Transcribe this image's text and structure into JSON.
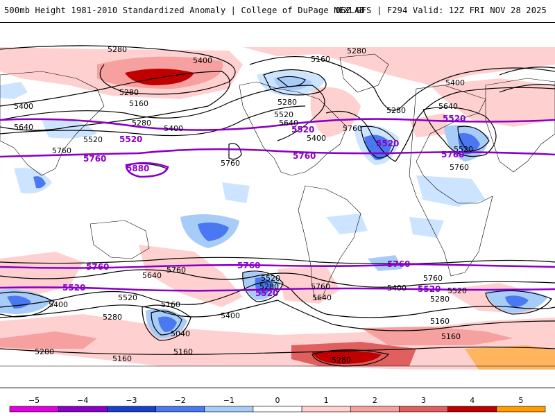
{
  "header": {
    "title": "500mb Height 1981-2010 Standardized Anomaly | College of DuPage NEXLAB",
    "run_info": "06Z GFS | F294 Valid: 12Z FRI NOV 28 2025"
  },
  "map": {
    "contour_labels": {
      "c5280": "5280",
      "c5400": "5400",
      "c5160": "5160",
      "c5520": "5520",
      "c5640": "5640",
      "c5760": "5760",
      "c5880": "5880",
      "c5040": "5040"
    },
    "colors": {
      "pos1": "#ffd0d0",
      "pos2": "#f6a0a0",
      "pos3": "#e06060",
      "pos4": "#c00000",
      "neg1": "#cce4ff",
      "neg2": "#a8ccf8",
      "neg3": "#4a78f0",
      "neg4": "#1a3fc8",
      "thick_contour": "#8a00c8"
    }
  },
  "legend": {
    "ticks": [
      "−5",
      "−4",
      "−3",
      "−2",
      "−1",
      "0",
      "1",
      "2",
      "3",
      "4",
      "5"
    ],
    "colors": [
      "#e000e0",
      "#8a00c8",
      "#1a3fc8",
      "#4a78f0",
      "#a8ccf8",
      "#ffffff",
      "#ffd0d0",
      "#f6a0a0",
      "#e06060",
      "#c00000",
      "#ff9c00"
    ]
  }
}
